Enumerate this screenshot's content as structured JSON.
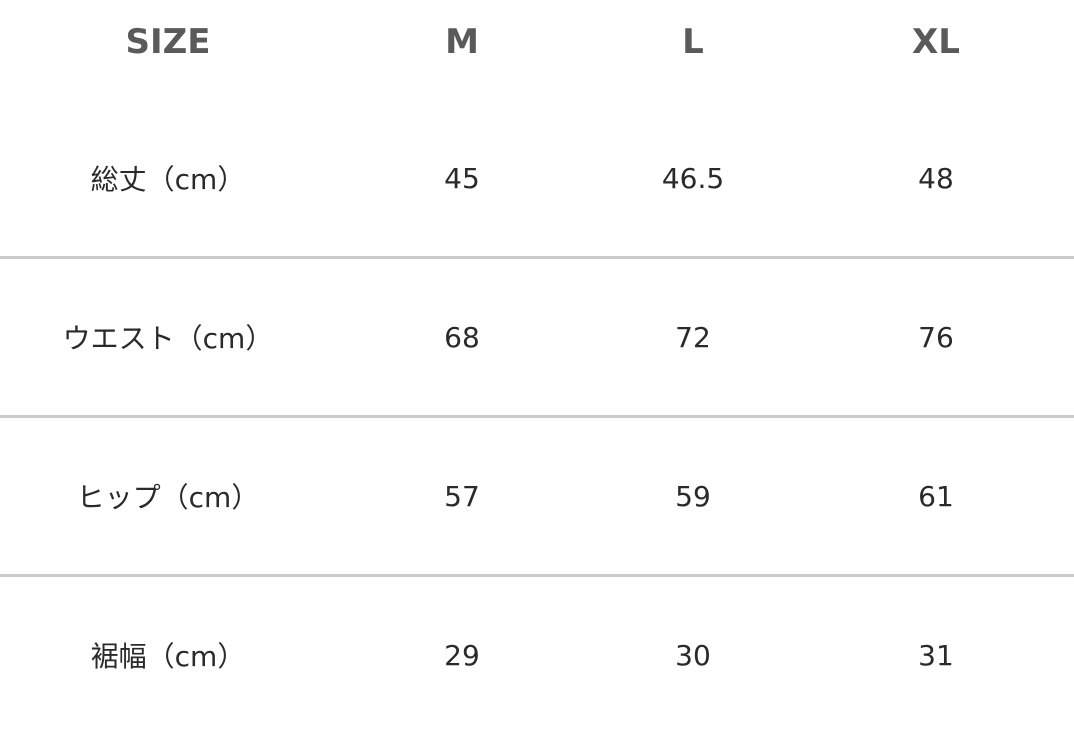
{
  "header": [
    "SIZE",
    "M",
    "L",
    "XL"
  ],
  "rows": [
    [
      "総丈（cm）",
      "45",
      "46.5",
      "48"
    ],
    [
      "ウエスト（cm）",
      "68",
      "72",
      "76"
    ],
    [
      "ヒップ（cm）",
      "57",
      "59",
      "61"
    ],
    [
      "裾幅（cm）",
      "29",
      "30",
      "31"
    ]
  ],
  "colors": {
    "header_text": "#5a5a5a",
    "body_text": "#2a2a2a",
    "divider": "#cacaca"
  }
}
